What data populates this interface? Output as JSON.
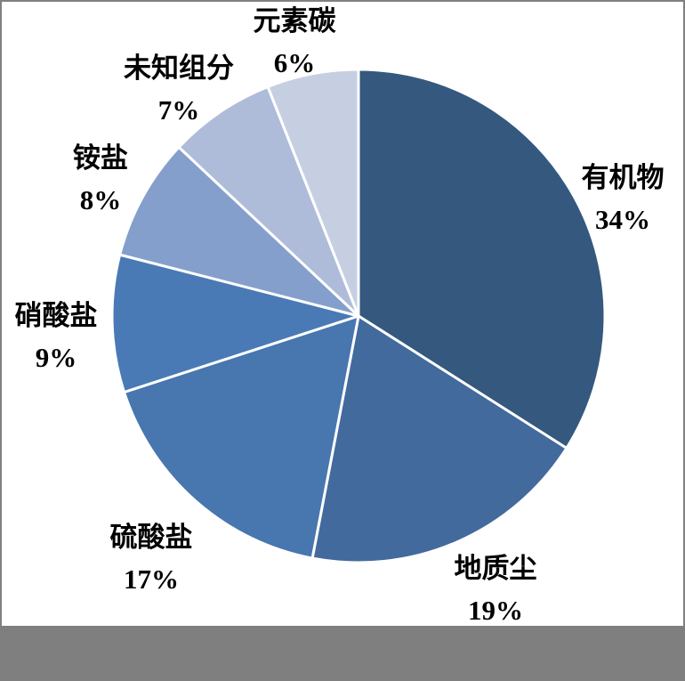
{
  "chart_data": {
    "type": "pie",
    "title": "",
    "unit": "%",
    "direction": "clockwise",
    "start_angle_deg": 0,
    "slice_border_color": "#FFFFFF",
    "background_color": "#FFFFFF",
    "legend": "none",
    "slices": [
      {
        "label": "有机物",
        "value": 34,
        "pct_label": "34%",
        "color": "#35587E"
      },
      {
        "label": "地质尘",
        "value": 19,
        "pct_label": "19%",
        "color": "#426A9D"
      },
      {
        "label": "硫酸盐",
        "value": 17,
        "pct_label": "17%",
        "color": "#4876AF"
      },
      {
        "label": "硝酸盐",
        "value": 9,
        "pct_label": "9%",
        "color": "#4A7AB5"
      },
      {
        "label": "铵盐",
        "value": 8,
        "pct_label": "8%",
        "color": "#859FCC"
      },
      {
        "label": "未知组分",
        "value": 7,
        "pct_label": "7%",
        "color": "#AEBCD9"
      },
      {
        "label": "元素碳",
        "value": 6,
        "pct_label": "6%",
        "color": "#C6CFE2"
      }
    ]
  },
  "ui": {
    "frame_border_color": "#808080",
    "bottom_bar_color": "#7F7F7F"
  }
}
